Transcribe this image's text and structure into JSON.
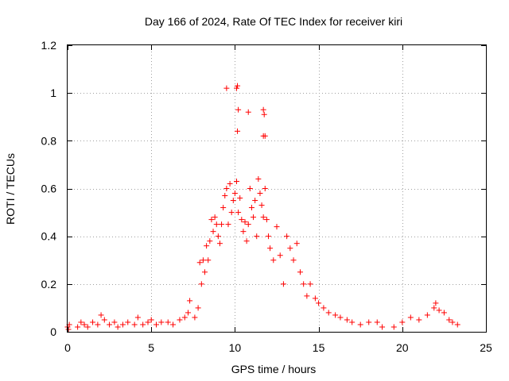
{
  "chart_data": {
    "type": "scatter",
    "title": "Day 166 of 2024, Rate Of TEC Index for receiver kiri",
    "xlabel": "GPS time / hours",
    "ylabel": "ROTI / TECUs",
    "xlim": [
      0,
      25
    ],
    "ylim": [
      0,
      1.2
    ],
    "xticks": [
      0,
      5,
      10,
      15,
      20,
      25
    ],
    "xtick_labels": [
      "0",
      "5",
      "10",
      "15",
      "20",
      "25"
    ],
    "yticks": [
      0,
      0.2,
      0.4,
      0.6,
      0.8,
      1,
      1.2
    ],
    "ytick_labels": [
      "0",
      "0.2",
      "0.4",
      "0.6",
      "0.8",
      "1",
      "1.2"
    ],
    "grid": true,
    "marker": "+",
    "color": "#ff0000",
    "series": [
      {
        "name": "kiri",
        "points": [
          [
            0.0,
            0.02
          ],
          [
            0.05,
            0.01
          ],
          [
            0.1,
            0.03
          ],
          [
            0.6,
            0.02
          ],
          [
            0.8,
            0.04
          ],
          [
            1.0,
            0.03
          ],
          [
            1.2,
            0.02
          ],
          [
            1.5,
            0.04
          ],
          [
            1.8,
            0.03
          ],
          [
            2.0,
            0.07
          ],
          [
            2.2,
            0.05
          ],
          [
            2.5,
            0.03
          ],
          [
            2.8,
            0.04
          ],
          [
            3.0,
            0.02
          ],
          [
            3.3,
            0.03
          ],
          [
            3.6,
            0.04
          ],
          [
            4.0,
            0.03
          ],
          [
            4.2,
            0.06
          ],
          [
            4.5,
            0.03
          ],
          [
            4.8,
            0.04
          ],
          [
            5.0,
            0.05
          ],
          [
            5.3,
            0.03
          ],
          [
            5.6,
            0.04
          ],
          [
            6.0,
            0.04
          ],
          [
            6.3,
            0.03
          ],
          [
            6.7,
            0.05
          ],
          [
            7.0,
            0.06
          ],
          [
            7.2,
            0.08
          ],
          [
            7.3,
            0.13
          ],
          [
            7.6,
            0.06
          ],
          [
            7.8,
            0.1
          ],
          [
            7.9,
            0.29
          ],
          [
            8.0,
            0.2
          ],
          [
            8.1,
            0.3
          ],
          [
            8.2,
            0.25
          ],
          [
            8.3,
            0.36
          ],
          [
            8.4,
            0.3
          ],
          [
            8.5,
            0.38
          ],
          [
            8.6,
            0.47
          ],
          [
            8.7,
            0.42
          ],
          [
            8.8,
            0.48
          ],
          [
            8.9,
            0.45
          ],
          [
            9.0,
            0.4
          ],
          [
            9.1,
            0.37
          ],
          [
            9.2,
            0.45
          ],
          [
            9.3,
            0.52
          ],
          [
            9.4,
            0.57
          ],
          [
            9.5,
            0.6
          ],
          [
            9.6,
            0.45
          ],
          [
            9.7,
            0.62
          ],
          [
            9.8,
            0.5
          ],
          [
            9.9,
            0.55
          ],
          [
            10.0,
            0.58
          ],
          [
            10.1,
            0.63
          ],
          [
            10.2,
            0.5
          ],
          [
            10.3,
            0.56
          ],
          [
            10.4,
            0.47
          ],
          [
            10.5,
            0.42
          ],
          [
            10.6,
            0.46
          ],
          [
            10.7,
            0.38
          ],
          [
            10.8,
            0.45
          ],
          [
            10.9,
            0.6
          ],
          [
            11.0,
            0.52
          ],
          [
            11.1,
            0.48
          ],
          [
            11.2,
            0.55
          ],
          [
            11.3,
            0.4
          ],
          [
            11.4,
            0.64
          ],
          [
            11.5,
            0.58
          ],
          [
            11.6,
            0.53
          ],
          [
            11.7,
            0.48
          ],
          [
            11.8,
            0.6
          ],
          [
            11.9,
            0.47
          ],
          [
            12.0,
            0.4
          ],
          [
            12.1,
            0.35
          ],
          [
            12.3,
            0.3
          ],
          [
            12.5,
            0.44
          ],
          [
            12.7,
            0.32
          ],
          [
            12.9,
            0.2
          ],
          [
            13.1,
            0.4
          ],
          [
            13.3,
            0.35
          ],
          [
            13.5,
            0.3
          ],
          [
            13.7,
            0.37
          ],
          [
            13.9,
            0.25
          ],
          [
            14.1,
            0.2
          ],
          [
            14.3,
            0.15
          ],
          [
            14.5,
            0.2
          ],
          [
            14.8,
            0.14
          ],
          [
            15.0,
            0.12
          ],
          [
            15.3,
            0.1
          ],
          [
            15.6,
            0.08
          ],
          [
            16.0,
            0.07
          ],
          [
            16.3,
            0.06
          ],
          [
            16.7,
            0.05
          ],
          [
            17.0,
            0.04
          ],
          [
            17.5,
            0.03
          ],
          [
            18.0,
            0.04
          ],
          [
            18.5,
            0.04
          ],
          [
            18.8,
            0.02
          ],
          [
            19.5,
            0.02
          ],
          [
            20.0,
            0.04
          ],
          [
            20.5,
            0.06
          ],
          [
            21.0,
            0.05
          ],
          [
            21.5,
            0.07
          ],
          [
            21.9,
            0.1
          ],
          [
            22.0,
            0.12
          ],
          [
            22.2,
            0.09
          ],
          [
            22.5,
            0.08
          ],
          [
            22.8,
            0.05
          ],
          [
            23.0,
            0.04
          ],
          [
            23.3,
            0.03
          ],
          [
            9.5,
            1.02
          ],
          [
            10.1,
            1.02
          ],
          [
            10.15,
            1.03
          ],
          [
            10.2,
            0.93
          ],
          [
            10.15,
            0.84
          ],
          [
            10.8,
            0.92
          ],
          [
            11.7,
            0.93
          ],
          [
            11.75,
            0.91
          ],
          [
            11.7,
            0.82
          ],
          [
            11.8,
            0.82
          ]
        ]
      }
    ]
  }
}
